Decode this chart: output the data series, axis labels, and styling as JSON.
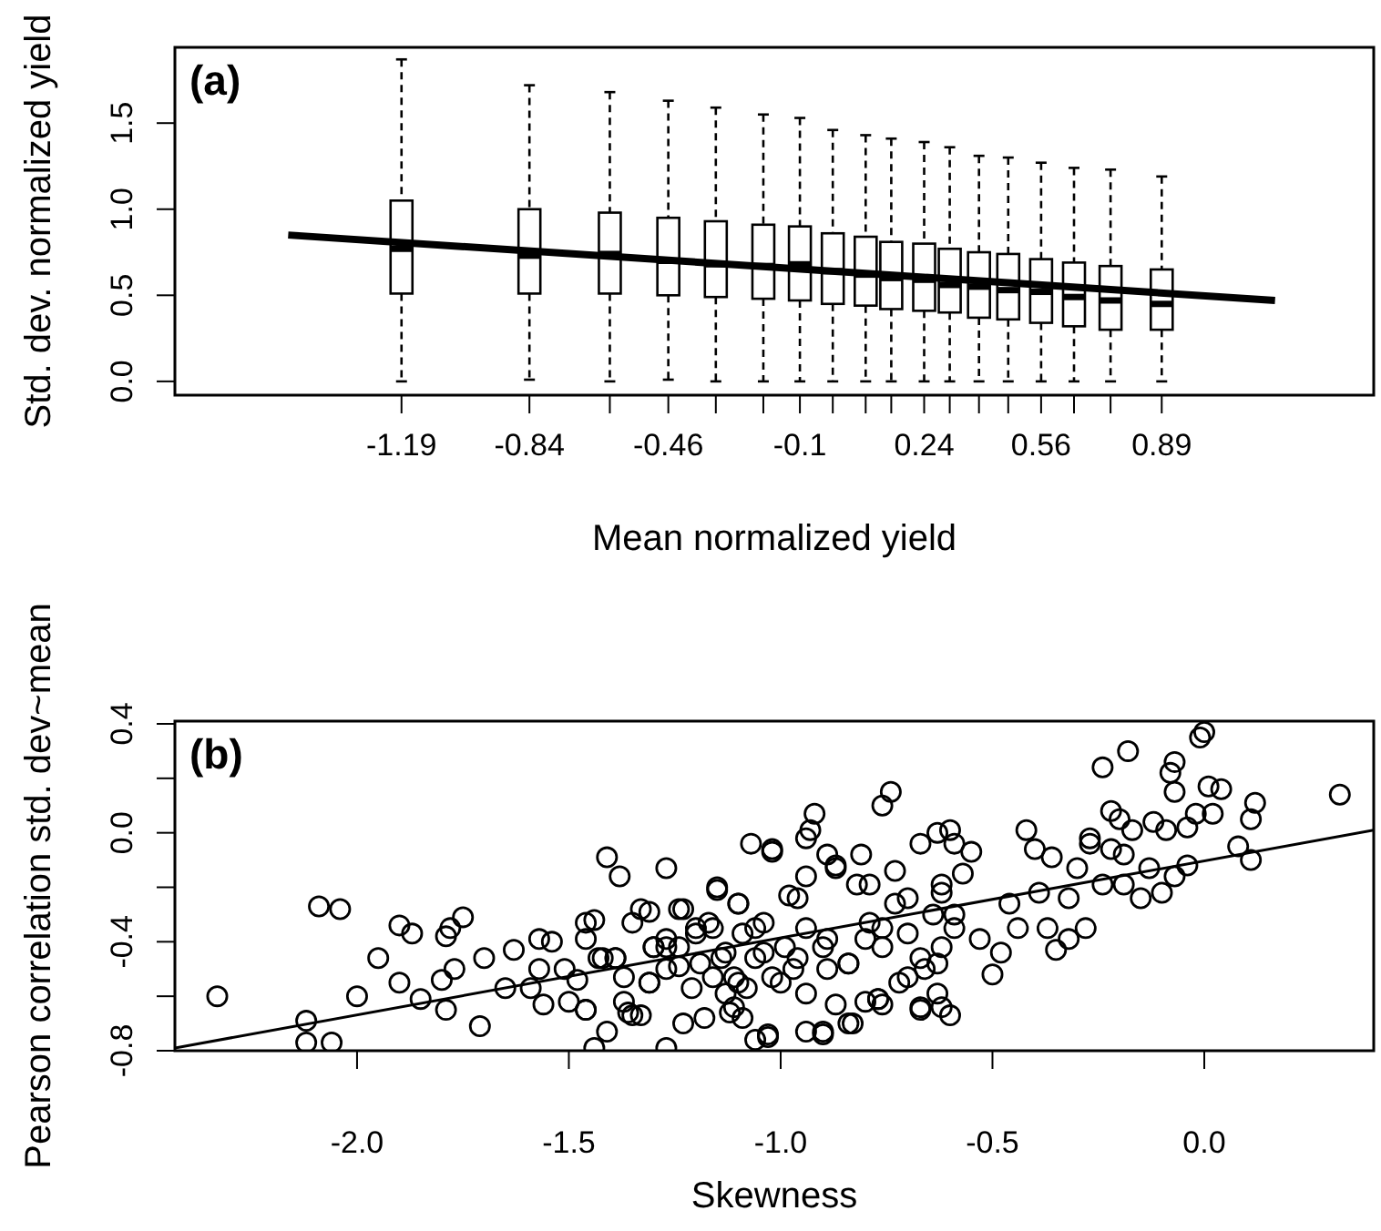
{
  "chart_data": [
    {
      "type": "box",
      "title": "(a)",
      "xlabel": "Mean normalized yield",
      "ylabel": "Std. dev. normalized yield",
      "xlim": [
        -1.81,
        1.47
      ],
      "ylim": [
        -0.08,
        1.94
      ],
      "xticks": [
        -1.19,
        -0.84,
        {
          "value": -0.62,
          "label": null
        },
        -0.46,
        {
          "value": -0.33,
          "label": null
        },
        {
          "value": -0.2,
          "label": null
        },
        -0.1,
        {
          "value": -0.01,
          "label": null
        },
        {
          "value": 0.08,
          "label": null
        },
        {
          "value": 0.15,
          "label": null
        },
        0.24,
        {
          "value": 0.31,
          "label": null
        },
        {
          "value": 0.39,
          "label": null
        },
        {
          "value": 0.47,
          "label": null
        },
        0.56,
        {
          "value": 0.65,
          "label": null
        },
        {
          "value": 0.75,
          "label": null
        },
        0.89
      ],
      "yticks": [
        {
          "value": 0,
          "label": "0.0"
        },
        0.5,
        {
          "value": 1,
          "label": "1.0"
        },
        1.5
      ],
      "series": [
        {
          "color": "#000000",
          "x": [
            -1.19,
            -0.84,
            -0.62,
            -0.46,
            -0.33,
            -0.2,
            -0.1,
            -0.01,
            0.08,
            0.15,
            0.24,
            0.31,
            0.39,
            0.47,
            0.56,
            0.65,
            0.75,
            0.89
          ],
          "boxes": [
            {
              "low": 0,
              "q1": 0.51,
              "median": 0.77,
              "q3": 1.05,
              "high": 1.87
            },
            {
              "low": 0.01,
              "q1": 0.51,
              "median": 0.73,
              "q3": 1.0,
              "high": 1.72
            },
            {
              "low": 0,
              "q1": 0.51,
              "median": 0.74,
              "q3": 0.98,
              "high": 1.68
            },
            {
              "low": 0.01,
              "q1": 0.5,
              "median": 0.7,
              "q3": 0.95,
              "high": 1.63
            },
            {
              "low": 0,
              "q1": 0.49,
              "median": 0.68,
              "q3": 0.93,
              "high": 1.59
            },
            {
              "low": 0,
              "q1": 0.48,
              "median": 0.67,
              "q3": 0.91,
              "high": 1.55
            },
            {
              "low": 0,
              "q1": 0.47,
              "median": 0.68,
              "q3": 0.9,
              "high": 1.53
            },
            {
              "low": 0,
              "q1": 0.45,
              "median": 0.64,
              "q3": 0.86,
              "high": 1.46
            },
            {
              "low": 0,
              "q1": 0.44,
              "median": 0.62,
              "q3": 0.84,
              "high": 1.43
            },
            {
              "low": 0,
              "q1": 0.42,
              "median": 0.6,
              "q3": 0.81,
              "high": 1.41
            },
            {
              "low": 0,
              "q1": 0.41,
              "median": 0.59,
              "q3": 0.8,
              "high": 1.39
            },
            {
              "low": 0,
              "q1": 0.4,
              "median": 0.56,
              "q3": 0.77,
              "high": 1.36
            },
            {
              "low": 0,
              "q1": 0.37,
              "median": 0.55,
              "q3": 0.75,
              "high": 1.31
            },
            {
              "low": 0,
              "q1": 0.36,
              "median": 0.53,
              "q3": 0.74,
              "high": 1.3
            },
            {
              "low": 0,
              "q1": 0.34,
              "median": 0.52,
              "q3": 0.71,
              "high": 1.27
            },
            {
              "low": 0,
              "q1": 0.32,
              "median": 0.49,
              "q3": 0.69,
              "high": 1.24
            },
            {
              "low": 0,
              "q1": 0.3,
              "median": 0.47,
              "q3": 0.67,
              "high": 1.23
            },
            {
              "low": 0,
              "q1": 0.3,
              "median": 0.45,
              "q3": 0.65,
              "high": 1.19
            }
          ]
        },
        {
          "type": "line",
          "color": "#000000",
          "x": [
            -1.5,
            1.2
          ],
          "values": [
            0.85,
            0.47
          ]
        }
      ]
    },
    {
      "type": "scatter",
      "title": "(b)",
      "xlabel": "Skewness",
      "ylabel": "Pearson correlation std. dev~mean",
      "xlim": [
        -2.43,
        0.4
      ],
      "ylim": [
        -0.8,
        0.41
      ],
      "xticks": [
        {
          "value": -2,
          "label": "-2.0"
        },
        -1.5,
        {
          "value": -1,
          "label": "-1.0"
        },
        -0.5,
        {
          "value": 0,
          "label": "0.0"
        }
      ],
      "yticks": [
        -0.8,
        {
          "value": -0.6,
          "label": null
        },
        -0.4,
        {
          "value": -0.2,
          "label": null
        },
        {
          "value": 0,
          "label": "0.0"
        },
        {
          "value": 0.2,
          "label": null
        },
        0.4
      ],
      "series": [
        {
          "marker": "circle",
          "color": "#000000",
          "x": [
            -2.33,
            -2.09,
            -2.04,
            -2.12,
            -2.12,
            -2.06,
            -2.0,
            -1.95,
            -1.9,
            -1.9,
            -1.87,
            -1.85,
            -1.79,
            -1.78,
            -1.75,
            -1.8,
            -1.77,
            -1.79,
            -1.71,
            -1.7,
            -1.65,
            -1.63,
            -1.59,
            -1.57,
            -1.57,
            -1.56,
            -1.54,
            -1.51,
            -1.5,
            -1.48,
            -1.46,
            -1.44,
            -1.46,
            -1.46,
            -1.44,
            -1.41,
            -1.41,
            -1.38,
            -1.43,
            -1.39,
            -1.35,
            -1.37,
            -1.35,
            -1.33,
            -1.33,
            -1.31,
            -1.3,
            -1.27,
            -1.27,
            -1.23,
            -1.24,
            -1.27,
            -1.31,
            -1.24,
            -1.21,
            -1.18,
            -1.2,
            -1.15,
            -1.16,
            -1.14,
            -1.11,
            -1.09,
            -1.07,
            -1.02,
            -1.06,
            -1.03,
            -1.1,
            -1.06,
            -1.11,
            -1.04,
            -1.08,
            -1.02,
            -1.03,
            -0.94,
            -0.9,
            -0.83,
            -0.87,
            -0.92,
            -0.93,
            -0.94,
            -0.98,
            -0.94,
            -0.89,
            -0.87,
            -0.81,
            -0.76,
            -0.74,
            -0.77,
            -0.67,
            -0.62,
            -0.6,
            -0.67,
            -0.63,
            -0.6,
            -0.59,
            -0.55,
            -0.5,
            -0.73,
            -0.79,
            -0.7,
            -0.89,
            -0.96,
            -1.0,
            -0.84,
            -0.8,
            -0.76,
            -0.7,
            -0.63,
            -0.59,
            -0.53,
            -0.62,
            -0.57,
            -0.48,
            -0.44,
            -0.42,
            -0.4,
            -0.36,
            -0.39,
            -0.46,
            -0.35,
            -0.32,
            -0.28,
            -0.37,
            -0.32,
            -0.27,
            -0.27,
            -0.3,
            -0.24,
            -0.18,
            -0.22,
            -0.2,
            -0.17,
            -0.22,
            -0.24,
            -0.19,
            -0.19,
            -0.15,
            -0.13,
            -0.12,
            -0.09,
            -0.08,
            -0.07,
            -0.07,
            -0.1,
            -0.07,
            -0.04,
            -0.02,
            -0.04,
            -0.01,
            0.0,
            0.01,
            0.04,
            0.02,
            0.08,
            0.11,
            0.11,
            0.12,
            0.32,
            -1.3,
            -1.23,
            -1.2,
            -1.17,
            -1.15,
            -1.13,
            -1.1,
            -1.09,
            -1.06,
            -1.04,
            -1.02,
            -0.99,
            -0.96,
            -0.94,
            -0.9,
            -0.87,
            -0.89,
            -0.84,
            -0.82,
            -0.79,
            -0.76,
            -0.73,
            -0.7,
            -0.67,
            -0.64,
            -0.62,
            -0.62,
            -0.59,
            -0.8,
            -0.77,
            -0.67,
            -1.46,
            -1.36,
            -1.37,
            -1.31,
            -1.27,
            -1.42,
            -1.39,
            -1.27,
            -1.24,
            -1.19,
            -1.16,
            -1.13,
            -1.1,
            -1.12,
            -0.9,
            -0.84,
            -0.97,
            -0.94,
            -0.76,
            -0.72,
            -0.66,
            -0.63
          ],
          "values": [
            -0.6,
            -0.27,
            -0.28,
            -0.69,
            -0.77,
            -0.77,
            -0.6,
            -0.46,
            -0.34,
            -0.55,
            -0.37,
            -0.61,
            -0.38,
            -0.35,
            -0.31,
            -0.54,
            -0.5,
            -0.65,
            -0.71,
            -0.46,
            -0.57,
            -0.43,
            -0.57,
            -0.39,
            -0.5,
            -0.63,
            -0.4,
            -0.5,
            -0.62,
            -0.54,
            -0.33,
            -0.32,
            -0.39,
            -0.65,
            -0.79,
            -0.73,
            -0.09,
            -0.16,
            -0.46,
            -0.46,
            -0.33,
            -0.62,
            -0.67,
            -0.67,
            -0.28,
            -0.29,
            -0.42,
            -0.13,
            -0.79,
            -0.7,
            -0.28,
            -0.42,
            -0.55,
            -0.49,
            -0.57,
            -0.68,
            -0.35,
            -0.21,
            -0.35,
            -0.46,
            -0.64,
            -0.68,
            -0.04,
            -0.07,
            -0.76,
            -0.75,
            -0.26,
            -0.35,
            -0.53,
            -0.44,
            -0.57,
            -0.06,
            -0.74,
            -0.73,
            -0.74,
            -0.7,
            -0.63,
            0.07,
            0.01,
            -0.02,
            -0.23,
            -0.16,
            -0.08,
            -0.12,
            -0.08,
            0.1,
            0.15,
            -0.61,
            -0.65,
            -0.64,
            -0.67,
            -0.04,
            0.0,
            0.01,
            -0.04,
            -0.07,
            -0.52,
            -0.14,
            -0.19,
            -0.24,
            -0.39,
            -0.46,
            -0.55,
            -0.48,
            -0.39,
            -0.35,
            -0.53,
            -0.48,
            -0.3,
            -0.39,
            -0.19,
            -0.15,
            -0.44,
            -0.35,
            0.01,
            -0.06,
            -0.09,
            -0.22,
            -0.26,
            -0.43,
            -0.39,
            -0.35,
            -0.35,
            -0.24,
            -0.02,
            -0.04,
            -0.13,
            0.24,
            0.3,
            0.08,
            0.05,
            0.01,
            -0.06,
            -0.19,
            -0.08,
            -0.19,
            -0.24,
            -0.13,
            0.04,
            0.01,
            0.22,
            0.26,
            0.15,
            -0.22,
            -0.16,
            0.02,
            0.07,
            -0.12,
            0.35,
            0.37,
            0.17,
            0.16,
            0.07,
            -0.05,
            -0.1,
            0.05,
            0.11,
            0.14,
            -0.42,
            -0.28,
            -0.37,
            -0.33,
            -0.2,
            -0.44,
            -0.26,
            -0.37,
            -0.46,
            -0.33,
            -0.53,
            -0.42,
            -0.24,
            -0.35,
            -0.42,
            -0.13,
            -0.5,
            -0.48,
            -0.19,
            -0.33,
            -0.42,
            -0.26,
            -0.37,
            -0.46,
            -0.3,
            -0.22,
            -0.42,
            -0.35,
            -0.62,
            -0.61,
            -0.64,
            -0.65,
            -0.66,
            -0.53,
            -0.55,
            -0.5,
            -0.46,
            -0.46,
            -0.39,
            -0.42,
            -0.48,
            -0.53,
            -0.59,
            -0.55,
            -0.66,
            -0.73,
            -0.7,
            -0.5,
            -0.59,
            -0.63,
            -0.55,
            -0.5,
            -0.59
          ]
        },
        {
          "type": "line",
          "color": "#000000",
          "x": [
            -2.43,
            0.4
          ],
          "values": [
            -0.79,
            0.01
          ]
        }
      ]
    }
  ]
}
